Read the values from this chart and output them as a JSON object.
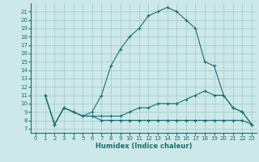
{
  "xlabel": "Humidex (Indice chaleur)",
  "xlim": [
    -0.5,
    23.5
  ],
  "ylim": [
    6.5,
    22
  ],
  "yticks": [
    7,
    8,
    9,
    10,
    11,
    12,
    13,
    14,
    15,
    16,
    17,
    18,
    19,
    20,
    21
  ],
  "xticks": [
    0,
    1,
    2,
    3,
    4,
    5,
    6,
    7,
    8,
    9,
    10,
    11,
    12,
    13,
    14,
    15,
    16,
    17,
    18,
    19,
    20,
    21,
    22,
    23
  ],
  "bg_color": "#cde8e8",
  "grid_color": "#9fc8c8",
  "line_color": "#1a7070",
  "lines": [
    {
      "x": [
        1,
        2,
        3,
        4,
        5,
        6,
        7,
        8,
        9,
        10,
        11,
        12,
        13,
        14,
        15,
        16,
        17,
        18,
        19,
        20,
        21,
        22,
        23
      ],
      "y": [
        11,
        7.5,
        9.5,
        9,
        8.5,
        9,
        11,
        14.5,
        16.5,
        18,
        19,
        20.5,
        21,
        21.5,
        21,
        20,
        19,
        15,
        14.5,
        11,
        9.5,
        9,
        7.5
      ]
    },
    {
      "x": [
        1,
        2,
        3,
        4,
        5,
        6,
        7,
        8,
        9,
        10,
        11,
        12,
        13,
        14,
        15,
        16,
        17,
        18,
        19,
        20,
        21,
        22,
        23
      ],
      "y": [
        11,
        7.5,
        9.5,
        9,
        8.5,
        8.5,
        8.5,
        8.5,
        8.5,
        9,
        9.5,
        9.5,
        10,
        10,
        10,
        10.5,
        11,
        11.5,
        11,
        11,
        9.5,
        9,
        7.5
      ]
    },
    {
      "x": [
        1,
        2,
        3,
        4,
        5,
        6,
        7,
        8,
        9,
        10,
        11,
        12,
        13,
        14,
        15,
        16,
        17,
        18,
        19,
        20,
        21,
        22,
        23
      ],
      "y": [
        11,
        7.5,
        9.5,
        9,
        8.5,
        8.5,
        8.0,
        8.0,
        8.0,
        8.0,
        8.0,
        8.0,
        8.0,
        8.0,
        8.0,
        8.0,
        8.0,
        8.0,
        8.0,
        8.0,
        8.0,
        8.0,
        7.5
      ]
    }
  ],
  "tick_fontsize": 5,
  "xlabel_fontsize": 6,
  "line_width": 0.8,
  "marker_size": 3
}
